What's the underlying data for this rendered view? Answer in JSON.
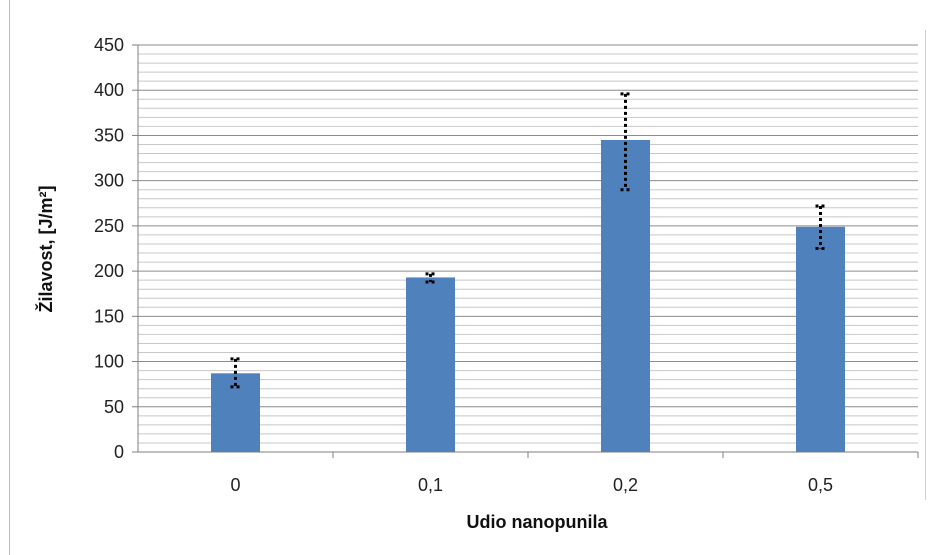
{
  "chart_data": {
    "type": "bar",
    "title": "",
    "xlabel": "Udio nanopunila",
    "ylabel": "Žilavost, [J/m²]",
    "categories": [
      "0",
      "0,1",
      "0,2",
      "0,5"
    ],
    "values": [
      87,
      193,
      345,
      249
    ],
    "error_low": [
      72,
      188,
      290,
      225
    ],
    "error_high": [
      103,
      197,
      396,
      272
    ],
    "ylim": [
      0,
      450
    ],
    "y_ticks": [
      "0",
      "50",
      "100",
      "150",
      "200",
      "250",
      "300",
      "350",
      "400",
      "450"
    ],
    "major_step": 50,
    "minor_step": 10,
    "grid": true,
    "legend": "none",
    "bar_color": "#4F81BD",
    "error_bar_color": "#000000",
    "error_bar_style": "dotted"
  }
}
